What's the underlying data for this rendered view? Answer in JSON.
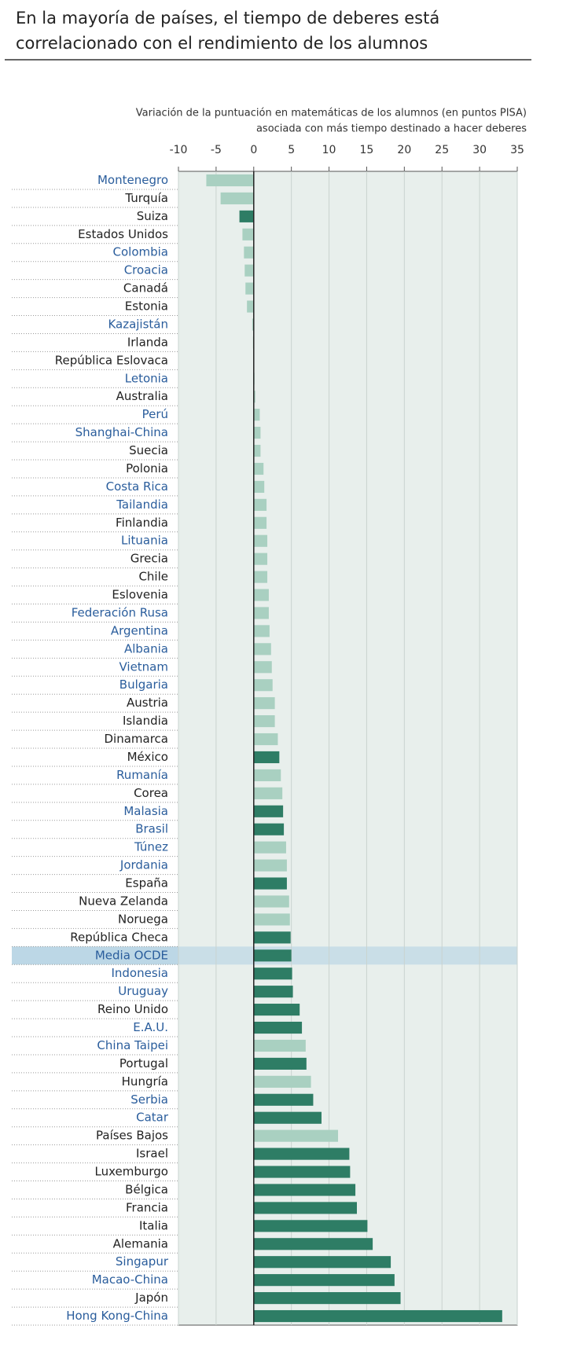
{
  "chart_data": {
    "type": "bar",
    "orientation": "horizontal",
    "title": [
      "En la mayoría de países, el tiempo de deberes está",
      "correlacionado con el rendimiento de los alumnos"
    ],
    "subtitle": [
      "Variación de la puntuación en matemáticas de los alumnos (en puntos PISA)",
      "asociada con más tiempo destinado a hacer deberes"
    ],
    "categories": [
      "Montenegro",
      "Turquía",
      "Suiza",
      "Estados Unidos",
      "Colombia",
      "Croacia",
      "Canadá",
      "Estonia",
      "Kazajistán",
      "Irlanda",
      "República Eslovaca",
      "Letonia",
      "Australia",
      "Perú",
      "Shanghai-China",
      "Suecia",
      "Polonia",
      "Costa Rica",
      "Tailandia",
      "Finlandia",
      "Lituania",
      "Grecia",
      "Chile",
      "Eslovenia",
      "Federación Rusa",
      "Argentina",
      "Albania",
      "Vietnam",
      "Bulgaria",
      "Austria",
      "Islandia",
      "Dinamarca",
      "México",
      "Rumanía",
      "Corea",
      "Malasia",
      "Brasil",
      "Túnez",
      "Jordania",
      "España",
      "Nueva Zelanda",
      "Noruega",
      "República Checa",
      "Media OCDE",
      "Indonesia",
      "Uruguay",
      "Reino Unido",
      "E.A.U.",
      "China Taipei",
      "Portugal",
      "Hungría",
      "Serbia",
      "Catar",
      "Países Bajos",
      "Israel",
      "Luxemburgo",
      "Bélgica",
      "Francia",
      "Italia",
      "Alemania",
      "Singapur",
      "Macao-China",
      "Japón",
      "Hong Kong-China"
    ],
    "values": [
      -6.3,
      -4.4,
      -1.9,
      -1.5,
      -1.3,
      -1.2,
      -1.1,
      -0.9,
      -0.2,
      -0.1,
      0.0,
      0.1,
      0.2,
      0.8,
      0.9,
      0.9,
      1.3,
      1.4,
      1.7,
      1.7,
      1.8,
      1.8,
      1.8,
      2.0,
      2.0,
      2.1,
      2.3,
      2.4,
      2.5,
      2.8,
      2.8,
      3.2,
      3.4,
      3.6,
      3.8,
      3.9,
      4.0,
      4.3,
      4.4,
      4.4,
      4.7,
      4.8,
      4.9,
      5.0,
      5.1,
      5.2,
      6.1,
      6.4,
      6.9,
      7.0,
      7.6,
      7.9,
      9.0,
      11.2,
      12.7,
      12.8,
      13.5,
      13.7,
      15.1,
      15.8,
      18.2,
      18.7,
      19.5,
      33.0
    ],
    "significant": [
      false,
      false,
      true,
      false,
      false,
      false,
      false,
      false,
      false,
      false,
      false,
      false,
      false,
      false,
      false,
      false,
      false,
      false,
      false,
      false,
      false,
      false,
      false,
      false,
      false,
      false,
      false,
      false,
      false,
      false,
      false,
      false,
      true,
      false,
      false,
      true,
      true,
      false,
      false,
      true,
      false,
      false,
      true,
      true,
      true,
      true,
      true,
      true,
      false,
      true,
      false,
      true,
      true,
      false,
      true,
      true,
      true,
      true,
      true,
      true,
      true,
      true,
      true,
      true
    ],
    "partner": [
      true,
      false,
      false,
      false,
      true,
      true,
      false,
      false,
      true,
      false,
      false,
      true,
      false,
      true,
      true,
      false,
      false,
      true,
      true,
      false,
      true,
      false,
      false,
      false,
      true,
      true,
      true,
      true,
      true,
      false,
      false,
      false,
      false,
      true,
      false,
      true,
      true,
      true,
      true,
      false,
      false,
      false,
      false,
      true,
      true,
      true,
      false,
      true,
      true,
      false,
      false,
      true,
      true,
      false,
      false,
      false,
      false,
      false,
      false,
      false,
      true,
      true,
      false,
      true
    ],
    "highlight_index": 43,
    "colors": {
      "significant": "#2e7d65",
      "not_significant": "#a9d0c1",
      "partner_label": "#2a5d9c",
      "oecd_label": "#222222",
      "highlight": "#bcd7e6",
      "plot_background": "#e8efec"
    },
    "xlim": [
      -10,
      35
    ],
    "xticks": [
      -10,
      -5,
      0,
      5,
      10,
      15,
      20,
      25,
      30,
      35
    ],
    "grid": true
  }
}
